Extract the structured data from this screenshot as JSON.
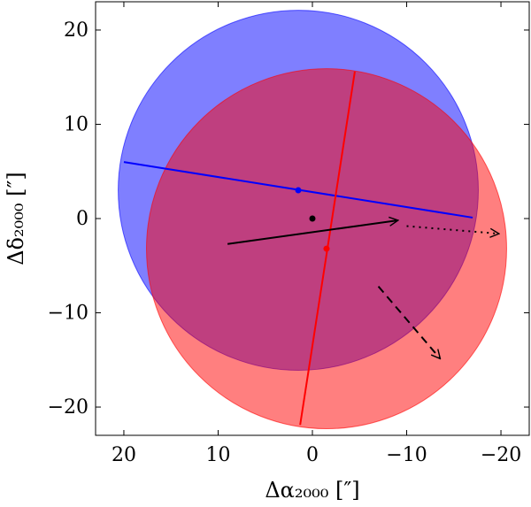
{
  "chart_data": {
    "type": "scatter",
    "xlabel": "Δα₂₀₀₀ [″]",
    "ylabel": "Δδ₂₀₀₀ [″]",
    "xlim": [
      23,
      -23
    ],
    "ylim": [
      -23,
      23
    ],
    "x_reversed": true,
    "grid": false,
    "x_ticks": [
      20,
      10,
      0,
      -10,
      -20
    ],
    "y_ticks": [
      -20,
      -10,
      0,
      10,
      20
    ],
    "x_tick_labels": [
      "20",
      "10",
      "0",
      "−10",
      "−20"
    ],
    "y_tick_labels": [
      "−20",
      "−10",
      "0",
      "10",
      "20"
    ],
    "circles": [
      {
        "center": [
          1.5,
          3.0
        ],
        "radius": 19.1,
        "color": "#0000ff",
        "opacity": 0.5
      },
      {
        "center": [
          -1.5,
          -3.2
        ],
        "radius": 19.1,
        "color": "#ff0000",
        "opacity": 0.5
      }
    ],
    "lines": [
      {
        "from": [
          20.0,
          6.0
        ],
        "to": [
          -17.0,
          0.1
        ],
        "color": "#0000ff"
      },
      {
        "from": [
          -4.5,
          15.6
        ],
        "to": [
          1.3,
          -21.9
        ],
        "color": "#ff0000"
      }
    ],
    "points": [
      {
        "x": 1.5,
        "y": 3.0,
        "color": "#0000ff"
      },
      {
        "x": -1.5,
        "y": -3.2,
        "color": "#ff0000"
      },
      {
        "x": 0.0,
        "y": 0.0,
        "color": "#000000"
      }
    ],
    "arrows": [
      {
        "from": [
          9.0,
          -2.7
        ],
        "to": [
          -9.0,
          -0.2
        ],
        "style": "solid",
        "color": "#000000"
      },
      {
        "from": [
          -10.0,
          -0.8
        ],
        "to": [
          -19.7,
          -1.6
        ],
        "style": "dotted",
        "color": "#000000"
      },
      {
        "from": [
          -7.0,
          -7.2
        ],
        "to": [
          -13.5,
          -14.8
        ],
        "style": "dashed",
        "color": "#000000"
      }
    ]
  }
}
